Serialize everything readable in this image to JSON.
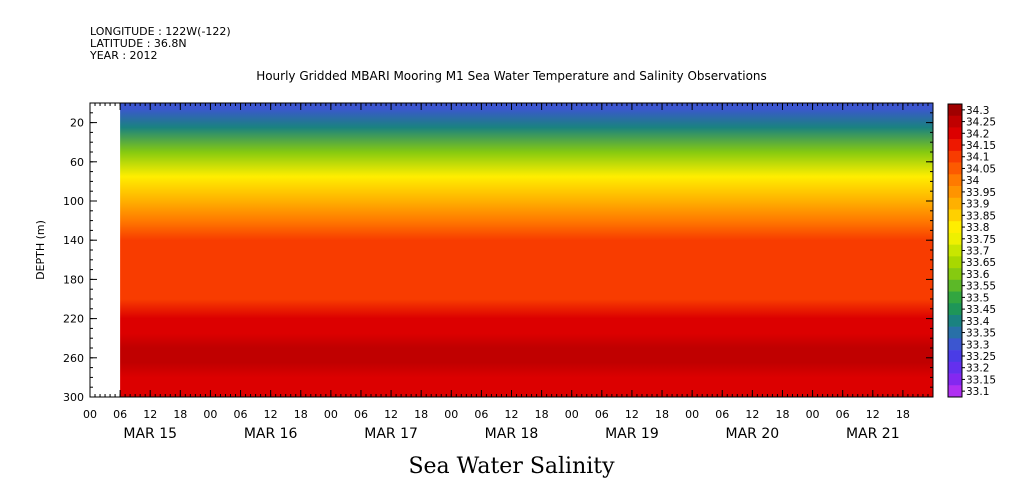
{
  "header": {
    "longitude": "LONGITUDE : 122W(-122)",
    "latitude": "LATITUDE : 36.8N",
    "year": "YEAR : 2012"
  },
  "chart_data": {
    "type": "heatmap",
    "title": "Hourly Gridded MBARI Mooring M1 Sea Water Temperature and Salinity Observations",
    "variable_label": "Sea Water Salinity",
    "ylabel": "DEPTH (m)",
    "y_reversed": true,
    "ylim": [
      300,
      0
    ],
    "y_ticks": [
      20,
      60,
      100,
      140,
      180,
      220,
      260,
      300
    ],
    "x_range_hours": [
      0,
      168
    ],
    "x_data_start_hour": 6,
    "x_hour_ticks": [
      0,
      6,
      12,
      18,
      0,
      6,
      12,
      18,
      0,
      6,
      12,
      18,
      0,
      6,
      12,
      18,
      0,
      6,
      12,
      18,
      0,
      6,
      12,
      18,
      0,
      6,
      12,
      18
    ],
    "x_day_labels": [
      "MAR 15",
      "MAR 16",
      "MAR 17",
      "MAR 18",
      "MAR 19",
      "MAR 20",
      "MAR 21"
    ],
    "depth_profile": {
      "depths": [
        5,
        25,
        50,
        75,
        100,
        120,
        140,
        160,
        180,
        200,
        220,
        235,
        250,
        265,
        280,
        300
      ],
      "salinity": [
        33.28,
        33.4,
        33.58,
        33.78,
        33.9,
        33.98,
        34.08,
        34.1,
        34.09,
        34.12,
        34.18,
        34.22,
        34.26,
        34.25,
        34.2,
        34.18
      ]
    },
    "colorbar": {
      "labels": [
        "34.3",
        "34.25",
        "34.2",
        "34.15",
        "34.1",
        "34.05",
        "34",
        "33.95",
        "33.9",
        "33.85",
        "33.8",
        "33.75",
        "33.7",
        "33.65",
        "33.6",
        "33.55",
        "33.5",
        "33.45",
        "33.4",
        "33.35",
        "33.3",
        "33.25",
        "33.2",
        "33.15",
        "33.1"
      ],
      "colors": [
        "#a00000",
        "#c00000",
        "#dc0000",
        "#ee1800",
        "#f83c00",
        "#fc5a00",
        "#ff7a00",
        "#ff9400",
        "#ffb000",
        "#ffd000",
        "#ffee00",
        "#eef000",
        "#c8e600",
        "#a8d800",
        "#86ca10",
        "#5cb828",
        "#32a640",
        "#1e9658",
        "#1a8280",
        "#2870a8",
        "#3c56d0",
        "#4a3ce6",
        "#6430ee",
        "#8428f0",
        "#b030f2"
      ]
    }
  }
}
